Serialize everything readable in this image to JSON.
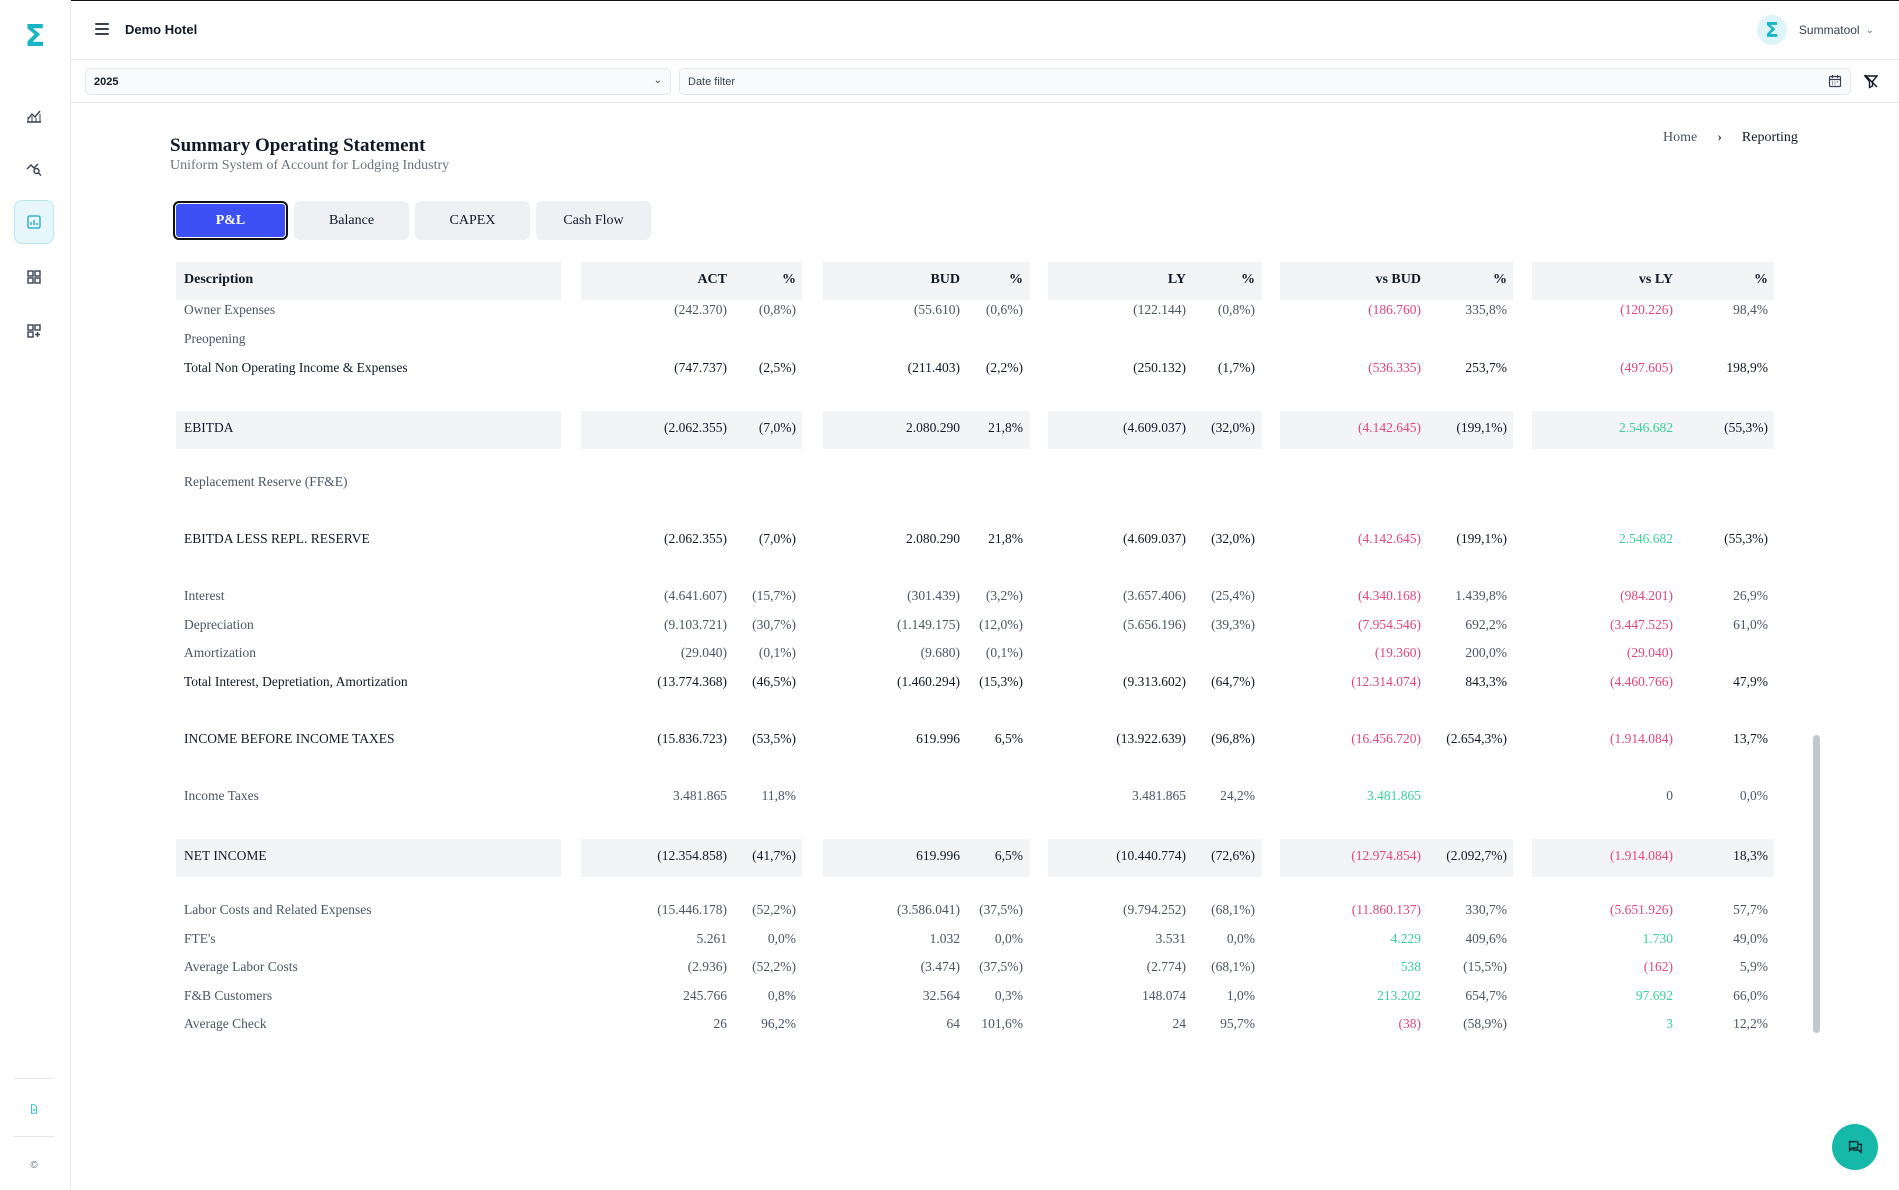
{
  "app": {
    "hotel_name": "Demo Hotel",
    "user_name": "Summatool",
    "brand_color": "#18b6c4",
    "accent_color": "#3d50f5",
    "negative_color": "#e0467c",
    "positive_color": "#3ccf9a"
  },
  "filters": {
    "year": "2025",
    "date_placeholder": "Date filter"
  },
  "page": {
    "title": "Summary Operating Statement",
    "subtitle": "Uniform System of Account for Lodging Industry"
  },
  "breadcrumb": {
    "home": "Home",
    "current": "Reporting"
  },
  "tabs": [
    {
      "label": "P&L",
      "active": true
    },
    {
      "label": "Balance",
      "active": false
    },
    {
      "label": "CAPEX",
      "active": false
    },
    {
      "label": "Cash Flow",
      "active": false
    }
  ],
  "table": {
    "headers": [
      "Description",
      "ACT",
      "%",
      "BUD",
      "%",
      "LY",
      "%",
      "vs BUD",
      "%",
      "vs LY",
      "%"
    ],
    "rows": [
      {
        "desc": "Owner Expenses",
        "style": "normal",
        "cells": [
          [
            "(242.370)",
            "g"
          ],
          [
            "(0,8%)",
            "g"
          ],
          [
            "(55.610)",
            "g"
          ],
          [
            "(0,6%)",
            "g"
          ],
          [
            "(122.144)",
            "g"
          ],
          [
            "(0,8%)",
            "g"
          ],
          [
            "(186.760)",
            "n"
          ],
          [
            "335,8%",
            "g"
          ],
          [
            "(120.226)",
            "n"
          ],
          [
            "98,4%",
            "g"
          ]
        ]
      },
      {
        "desc": "Preopening",
        "style": "normal",
        "cells": [
          [
            "",
            ""
          ],
          [
            "",
            ""
          ],
          [
            "",
            ""
          ],
          [
            "",
            ""
          ],
          [
            "",
            ""
          ],
          [
            "",
            ""
          ],
          [
            "",
            ""
          ],
          [
            "",
            ""
          ],
          [
            "",
            ""
          ],
          [
            "",
            ""
          ]
        ]
      },
      {
        "desc": "Total Non Operating Income & Expenses",
        "style": "strong",
        "cells": [
          [
            "(747.737)",
            "d"
          ],
          [
            "(2,5%)",
            "d"
          ],
          [
            "(211.403)",
            "d"
          ],
          [
            "(2,2%)",
            "d"
          ],
          [
            "(250.132)",
            "d"
          ],
          [
            "(1,7%)",
            "d"
          ],
          [
            "(536.335)",
            "n"
          ],
          [
            "253,7%",
            "d"
          ],
          [
            "(497.605)",
            "n"
          ],
          [
            "198,9%",
            "d"
          ]
        ]
      },
      {
        "desc": "EBITDA",
        "style": "strong",
        "shaded": true,
        "cells": [
          [
            "(2.062.355)",
            "d"
          ],
          [
            "(7,0%)",
            "d"
          ],
          [
            "2.080.290",
            "d"
          ],
          [
            "21,8%",
            "d"
          ],
          [
            "(4.609.037)",
            "d"
          ],
          [
            "(32,0%)",
            "d"
          ],
          [
            "(4.142.645)",
            "n"
          ],
          [
            "(199,1%)",
            "d"
          ],
          [
            "2.546.682",
            "p"
          ],
          [
            "(55,3%)",
            "d"
          ]
        ]
      },
      {
        "desc": "Replacement Reserve (FF&E)",
        "style": "normal",
        "cells": [
          [
            "",
            ""
          ],
          [
            "",
            ""
          ],
          [
            "",
            ""
          ],
          [
            "",
            ""
          ],
          [
            "",
            ""
          ],
          [
            "",
            ""
          ],
          [
            "",
            ""
          ],
          [
            "",
            ""
          ],
          [
            "",
            ""
          ],
          [
            "",
            ""
          ]
        ]
      },
      {
        "desc": "EBITDA LESS REPL. RESERVE",
        "style": "strong",
        "cells": [
          [
            "(2.062.355)",
            "d"
          ],
          [
            "(7,0%)",
            "d"
          ],
          [
            "2.080.290",
            "d"
          ],
          [
            "21,8%",
            "d"
          ],
          [
            "(4.609.037)",
            "d"
          ],
          [
            "(32,0%)",
            "d"
          ],
          [
            "(4.142.645)",
            "n"
          ],
          [
            "(199,1%)",
            "d"
          ],
          [
            "2.546.682",
            "p"
          ],
          [
            "(55,3%)",
            "d"
          ]
        ]
      },
      {
        "desc": "Interest",
        "style": "normal",
        "cells": [
          [
            "(4.641.607)",
            "g"
          ],
          [
            "(15,7%)",
            "g"
          ],
          [
            "(301.439)",
            "g"
          ],
          [
            "(3,2%)",
            "g"
          ],
          [
            "(3.657.406)",
            "g"
          ],
          [
            "(25,4%)",
            "g"
          ],
          [
            "(4.340.168)",
            "n"
          ],
          [
            "1.439,8%",
            "g"
          ],
          [
            "(984.201)",
            "n"
          ],
          [
            "26,9%",
            "g"
          ]
        ]
      },
      {
        "desc": "Depreciation",
        "style": "normal",
        "cells": [
          [
            "(9.103.721)",
            "g"
          ],
          [
            "(30,7%)",
            "g"
          ],
          [
            "(1.149.175)",
            "g"
          ],
          [
            "(12,0%)",
            "g"
          ],
          [
            "(5.656.196)",
            "g"
          ],
          [
            "(39,3%)",
            "g"
          ],
          [
            "(7.954.546)",
            "n"
          ],
          [
            "692,2%",
            "g"
          ],
          [
            "(3.447.525)",
            "n"
          ],
          [
            "61,0%",
            "g"
          ]
        ]
      },
      {
        "desc": "Amortization",
        "style": "normal",
        "cells": [
          [
            "(29.040)",
            "g"
          ],
          [
            "(0,1%)",
            "g"
          ],
          [
            "(9.680)",
            "g"
          ],
          [
            "(0,1%)",
            "g"
          ],
          [
            "",
            ""
          ],
          [
            "",
            ""
          ],
          [
            "(19.360)",
            "n"
          ],
          [
            "200,0%",
            "g"
          ],
          [
            "(29.040)",
            "n"
          ],
          [
            "",
            ""
          ]
        ]
      },
      {
        "desc": "Total Interest, Depretiation, Amortization",
        "style": "strong",
        "cells": [
          [
            "(13.774.368)",
            "d"
          ],
          [
            "(46,5%)",
            "d"
          ],
          [
            "(1.460.294)",
            "d"
          ],
          [
            "(15,3%)",
            "d"
          ],
          [
            "(9.313.602)",
            "d"
          ],
          [
            "(64,7%)",
            "d"
          ],
          [
            "(12.314.074)",
            "n"
          ],
          [
            "843,3%",
            "d"
          ],
          [
            "(4.460.766)",
            "n"
          ],
          [
            "47,9%",
            "d"
          ]
        ]
      },
      {
        "desc": "INCOME BEFORE INCOME TAXES",
        "style": "strong",
        "cells": [
          [
            "(15.836.723)",
            "d"
          ],
          [
            "(53,5%)",
            "d"
          ],
          [
            "619.996",
            "d"
          ],
          [
            "6,5%",
            "d"
          ],
          [
            "(13.922.639)",
            "d"
          ],
          [
            "(96,8%)",
            "d"
          ],
          [
            "(16.456.720)",
            "n"
          ],
          [
            "(2.654,3%)",
            "d"
          ],
          [
            "(1.914.084)",
            "n"
          ],
          [
            "13,7%",
            "d"
          ]
        ]
      },
      {
        "desc": "Income Taxes",
        "style": "normal",
        "cells": [
          [
            "3.481.865",
            "g"
          ],
          [
            "11,8%",
            "g"
          ],
          [
            "",
            ""
          ],
          [
            "",
            ""
          ],
          [
            "3.481.865",
            "g"
          ],
          [
            "24,2%",
            "g"
          ],
          [
            "3.481.865",
            "p"
          ],
          [
            "",
            ""
          ],
          [
            "0",
            "g"
          ],
          [
            "0,0%",
            "g"
          ]
        ]
      },
      {
        "desc": "NET INCOME",
        "style": "strong",
        "shaded": true,
        "cells": [
          [
            "(12.354.858)",
            "d"
          ],
          [
            "(41,7%)",
            "d"
          ],
          [
            "619.996",
            "d"
          ],
          [
            "6,5%",
            "d"
          ],
          [
            "(10.440.774)",
            "d"
          ],
          [
            "(72,6%)",
            "d"
          ],
          [
            "(12.974.854)",
            "n"
          ],
          [
            "(2.092,7%)",
            "d"
          ],
          [
            "(1.914.084)",
            "n"
          ],
          [
            "18,3%",
            "d"
          ]
        ]
      },
      {
        "desc": "Labor Costs and Related Expenses",
        "style": "normal",
        "cells": [
          [
            "(15.446.178)",
            "g"
          ],
          [
            "(52,2%)",
            "g"
          ],
          [
            "(3.586.041)",
            "g"
          ],
          [
            "(37,5%)",
            "g"
          ],
          [
            "(9.794.252)",
            "g"
          ],
          [
            "(68,1%)",
            "g"
          ],
          [
            "(11.860.137)",
            "n"
          ],
          [
            "330,7%",
            "g"
          ],
          [
            "(5.651.926)",
            "n"
          ],
          [
            "57,7%",
            "g"
          ]
        ]
      },
      {
        "desc": "FTE's",
        "style": "normal",
        "cells": [
          [
            "5.261",
            "g"
          ],
          [
            "0,0%",
            "g"
          ],
          [
            "1.032",
            "g"
          ],
          [
            "0,0%",
            "g"
          ],
          [
            "3.531",
            "g"
          ],
          [
            "0,0%",
            "g"
          ],
          [
            "4.229",
            "p"
          ],
          [
            "409,6%",
            "g"
          ],
          [
            "1.730",
            "p"
          ],
          [
            "49,0%",
            "g"
          ]
        ]
      },
      {
        "desc": "Average Labor Costs",
        "style": "normal",
        "cells": [
          [
            "(2.936)",
            "g"
          ],
          [
            "(52,2%)",
            "g"
          ],
          [
            "(3.474)",
            "g"
          ],
          [
            "(37,5%)",
            "g"
          ],
          [
            "(2.774)",
            "g"
          ],
          [
            "(68,1%)",
            "g"
          ],
          [
            "538",
            "p"
          ],
          [
            "(15,5%)",
            "g"
          ],
          [
            "(162)",
            "n"
          ],
          [
            "5,9%",
            "g"
          ]
        ]
      },
      {
        "desc": "F&B Customers",
        "style": "normal",
        "cells": [
          [
            "245.766",
            "g"
          ],
          [
            "0,8%",
            "g"
          ],
          [
            "32.564",
            "g"
          ],
          [
            "0,3%",
            "g"
          ],
          [
            "148.074",
            "g"
          ],
          [
            "1,0%",
            "g"
          ],
          [
            "213.202",
            "p"
          ],
          [
            "654,7%",
            "g"
          ],
          [
            "97.692",
            "p"
          ],
          [
            "66,0%",
            "g"
          ]
        ]
      },
      {
        "desc": "Average Check",
        "style": "normal",
        "cells": [
          [
            "26",
            "g"
          ],
          [
            "96,2%",
            "g"
          ],
          [
            "64",
            "g"
          ],
          [
            "101,6%",
            "g"
          ],
          [
            "24",
            "g"
          ],
          [
            "95,7%",
            "g"
          ],
          [
            "(38)",
            "n"
          ],
          [
            "(58,9%)",
            "g"
          ],
          [
            "3",
            "p"
          ],
          [
            "12,2%",
            "g"
          ]
        ]
      }
    ]
  },
  "icons": {
    "logo": "sigma-logo-icon",
    "nav": [
      "line-chart-icon",
      "analytics-search-icon",
      "report-icon",
      "dashboard-grid-icon",
      "widgets-grid-icon"
    ],
    "bottom": [
      "document-icon",
      "copyright-icon"
    ],
    "chat": "chat-icon",
    "calendar": "calendar-icon",
    "clear_filter": "filter-off-icon"
  }
}
